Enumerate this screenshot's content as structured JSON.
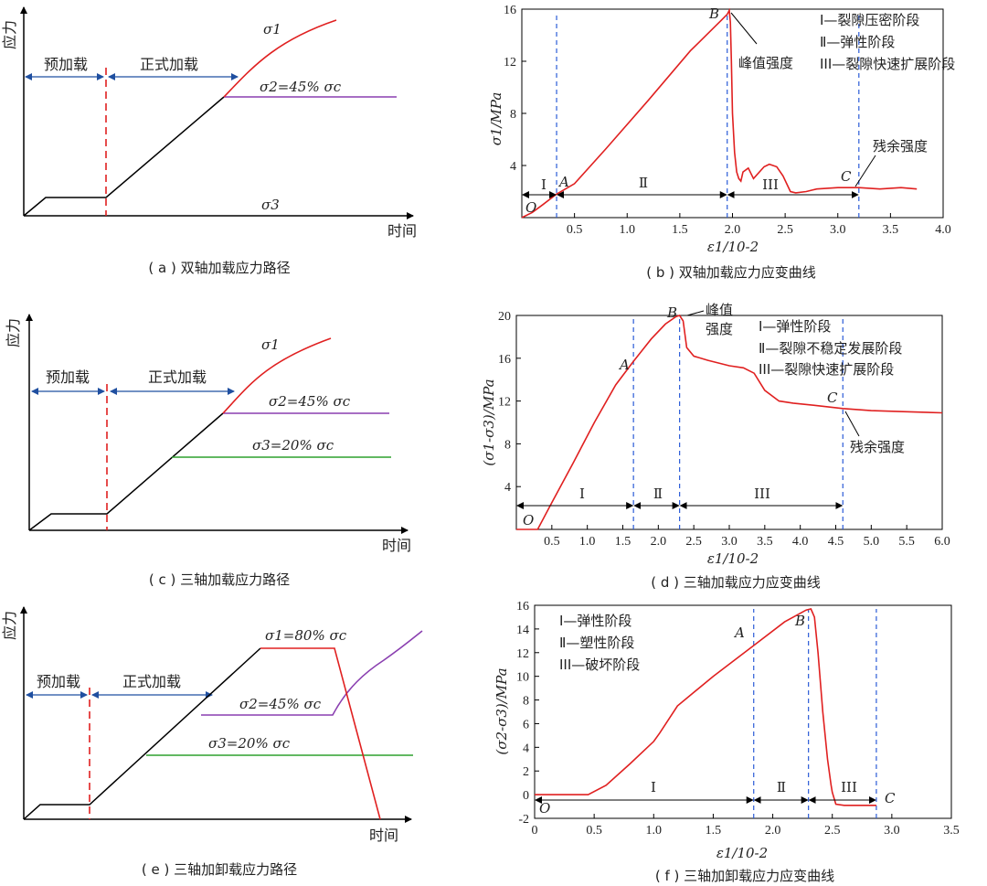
{
  "chart_data": [
    {
      "id": "a",
      "type": "line",
      "caption": "( a ) 双轴加载应力路径",
      "ylabel": "应力",
      "xlabel": "时间",
      "phase_labels": [
        "预加载",
        "正式加载"
      ],
      "legend": {
        "s1": "σ1",
        "s2": "σ2=45% σc",
        "s3": "σ3"
      },
      "series": [
        {
          "name": "σ1",
          "color": "#e02020",
          "points": [
            [
              0.45,
              0.85
            ],
            [
              0.5,
              0.9
            ],
            [
              0.56,
              0.95
            ],
            [
              0.63,
              0.98
            ],
            [
              0.72,
              1.0
            ]
          ]
        },
        {
          "name": "σ2=45% σc",
          "color": "#8a3fb0",
          "points": [
            [
              0.45,
              0.6
            ],
            [
              0.85,
              0.6
            ]
          ]
        },
        {
          "name": "loading",
          "color": "#000000",
          "points": [
            [
              0,
              0
            ],
            [
              0.05,
              0.09
            ],
            [
              0.2,
              0.09
            ],
            [
              0.45,
              0.6
            ]
          ]
        }
      ]
    },
    {
      "id": "b",
      "type": "line",
      "caption": "( b ) 双轴加载应力应变曲线",
      "xlabel": "ε1/10-2",
      "ylabel": "σ1/MPa",
      "xlim": [
        0,
        4.0
      ],
      "ylim": [
        0,
        16
      ],
      "xticks": [
        0.5,
        1.0,
        1.5,
        2.0,
        2.5,
        3.0,
        3.5,
        4.0
      ],
      "yticks": [
        4,
        8,
        12,
        16
      ],
      "xtick_labels": [
        "0.5",
        "1.0",
        "1.5",
        "2.0",
        "2.5",
        "3.0",
        "3.5",
        "4.0"
      ],
      "ytick_labels": [
        "4",
        "8",
        "12",
        "16"
      ],
      "points_labels": [
        "O",
        "A",
        "B",
        "C"
      ],
      "annotations": {
        "peak": "峰值强度",
        "residual": "残余强度"
      },
      "legend": [
        "Ⅰ—裂隙压密阶段",
        "Ⅱ—弹性阶段",
        "III—裂隙快速扩展阶段"
      ],
      "stages": [
        "Ⅰ",
        "Ⅱ",
        "III"
      ],
      "stage_bounds": [
        0,
        0.33,
        1.95,
        3.2
      ],
      "series": [
        {
          "name": "σ1",
          "color": "#e02020",
          "x": [
            0,
            0.1,
            0.2,
            0.33,
            0.5,
            0.8,
            1.2,
            1.6,
            1.9,
            1.95,
            1.97,
            1.98,
            1.99,
            2.0,
            2.02,
            2.04,
            2.06,
            2.08,
            2.1,
            2.15,
            2.2,
            2.3,
            2.35,
            2.42,
            2.48,
            2.55,
            2.6,
            2.7,
            2.8,
            3.0,
            3.2,
            3.4,
            3.6,
            3.75
          ],
          "y": [
            0,
            0.4,
            1.0,
            1.8,
            2.6,
            5.3,
            9.0,
            12.8,
            15.2,
            15.6,
            15.9,
            15.0,
            12.0,
            8.0,
            5.0,
            3.5,
            3.0,
            2.8,
            3.5,
            3.8,
            3.0,
            3.9,
            4.1,
            3.9,
            3.2,
            2.0,
            1.9,
            2.0,
            2.2,
            2.3,
            2.3,
            2.2,
            2.3,
            2.2
          ]
        }
      ]
    },
    {
      "id": "c",
      "type": "line",
      "caption": "( c ) 三轴加载应力路径",
      "ylabel": "应力",
      "xlabel": "时间",
      "phase_labels": [
        "预加载",
        "正式加载"
      ],
      "legend": {
        "s1": "σ1",
        "s2": "σ2=45% σc",
        "s3": "σ3=20% σc"
      },
      "series": [
        {
          "name": "σ1",
          "color": "#e02020",
          "points": [
            [
              0.45,
              0.6
            ],
            [
              0.5,
              0.68
            ],
            [
              0.56,
              0.78
            ],
            [
              0.63,
              0.86
            ],
            [
              0.72,
              0.9
            ]
          ]
        },
        {
          "name": "σ2=45% σc",
          "color": "#8a3fb0",
          "points": [
            [
              0.45,
              0.6
            ],
            [
              0.85,
              0.6
            ]
          ]
        },
        {
          "name": "σ3=20% σc",
          "color": "#2ea02e",
          "points": [
            [
              0.32,
              0.35
            ],
            [
              0.85,
              0.35
            ]
          ]
        },
        {
          "name": "loading",
          "color": "#000000",
          "points": [
            [
              0,
              0
            ],
            [
              0.05,
              0.08
            ],
            [
              0.2,
              0.08
            ],
            [
              0.45,
              0.6
            ]
          ]
        }
      ]
    },
    {
      "id": "d",
      "type": "line",
      "caption": "( d ) 三轴加载应力应变曲线",
      "xlabel": "ε1/10-2",
      "ylabel": "(σ1-σ3)/MPa",
      "xlim": [
        0,
        6.0
      ],
      "ylim": [
        0,
        20
      ],
      "xticks": [
        0.5,
        1.0,
        1.5,
        2.0,
        2.5,
        3.0,
        3.5,
        4.0,
        4.5,
        5.0,
        5.5,
        6.0
      ],
      "yticks": [
        4,
        8,
        12,
        16,
        20
      ],
      "xtick_labels": [
        "0.5",
        "1.0",
        "1.5",
        "2.0",
        "2.5",
        "3.0",
        "3.5",
        "4.0",
        "4.5",
        "5.0",
        "5.5",
        "6.0"
      ],
      "ytick_labels": [
        "4",
        "8",
        "12",
        "16",
        "20"
      ],
      "points_labels": [
        "O",
        "A",
        "B",
        "C"
      ],
      "annotations": {
        "peak": [
          "峰值",
          "强度"
        ],
        "residual": "残余强度"
      },
      "legend": [
        "Ⅰ—弹性阶段",
        "Ⅱ—裂隙不稳定发展阶段",
        "III—裂隙快速扩展阶段"
      ],
      "stages": [
        "Ⅰ",
        "Ⅱ",
        "III"
      ],
      "stage_bounds": [
        0,
        1.65,
        2.3,
        4.6
      ],
      "series": [
        {
          "name": "σ1-σ3",
          "color": "#e02020",
          "x": [
            0,
            0.3,
            0.5,
            0.8,
            1.1,
            1.4,
            1.65,
            1.9,
            2.1,
            2.25,
            2.3,
            2.35,
            2.4,
            2.5,
            2.7,
            3.0,
            3.2,
            3.35,
            3.5,
            3.7,
            3.9,
            4.2,
            4.6,
            5.0,
            5.5,
            6.0
          ],
          "y": [
            0,
            0,
            2.5,
            6.2,
            10.0,
            13.5,
            15.7,
            17.8,
            19.2,
            19.9,
            20.0,
            19.5,
            17.0,
            16.2,
            15.8,
            15.3,
            15.1,
            14.6,
            13.0,
            12.0,
            11.8,
            11.6,
            11.3,
            11.1,
            11.0,
            10.9
          ]
        }
      ]
    },
    {
      "id": "e",
      "type": "line",
      "caption": "( e ) 三轴加卸载应力路径",
      "ylabel": "应力",
      "xlabel": "时间",
      "phase_labels": [
        "预加载",
        "正式加载"
      ],
      "legend": {
        "s1": "σ1=80% σc",
        "s2": "σ2=45% σc",
        "s3": "σ3=20% σc"
      },
      "series": [
        {
          "name": "σ1=80% σc",
          "color": "#e02020",
          "points": [
            [
              0.6,
              0.86
            ],
            [
              0.78,
              0.86
            ],
            [
              0.9,
              0.0
            ]
          ]
        },
        {
          "name": "σ2=45% σc",
          "color": "#8a3fb0",
          "points": [
            [
              0.45,
              0.52
            ],
            [
              0.79,
              0.52
            ],
            [
              0.84,
              0.65
            ],
            [
              0.93,
              0.8
            ],
            [
              1.0,
              0.9
            ]
          ]
        },
        {
          "name": "σ3=20% σc",
          "color": "#2ea02e",
          "points": [
            [
              0.32,
              0.32
            ],
            [
              0.99,
              0.32
            ]
          ]
        },
        {
          "name": "loading",
          "color": "#000000",
          "points": [
            [
              0,
              0
            ],
            [
              0.05,
              0.06
            ],
            [
              0.2,
              0.06
            ],
            [
              0.6,
              0.86
            ]
          ]
        }
      ]
    },
    {
      "id": "f",
      "type": "line",
      "caption": "( f ) 三轴加卸载应力应变曲线",
      "xlabel": "ε1/10-2",
      "ylabel": "(σ2-σ3)/MPa",
      "xlim": [
        0,
        3.5
      ],
      "ylim": [
        -2,
        16
      ],
      "xticks": [
        0,
        0.5,
        1.0,
        1.5,
        2.0,
        2.5,
        3.0,
        3.5
      ],
      "yticks": [
        -2,
        0,
        2,
        4,
        6,
        8,
        10,
        12,
        14,
        16
      ],
      "xtick_labels": [
        "0",
        "0.5",
        "1.0",
        "1.5",
        "2.0",
        "2.5",
        "3.0",
        "3.5"
      ],
      "ytick_labels": [
        "-2",
        "0",
        "2",
        "4",
        "6",
        "8",
        "10",
        "12",
        "14",
        "16"
      ],
      "points_labels": [
        "O",
        "A",
        "B",
        "C"
      ],
      "legend": [
        "Ⅰ—弹性阶段",
        "Ⅱ—塑性阶段",
        "III—破坏阶段"
      ],
      "stages": [
        "Ⅰ",
        "Ⅱ",
        "III"
      ],
      "stage_bounds": [
        0,
        1.84,
        2.3,
        2.87
      ],
      "series": [
        {
          "name": "σ2-σ3",
          "color": "#e02020",
          "x": [
            0,
            0.45,
            0.6,
            0.8,
            1.0,
            1.05,
            1.2,
            1.5,
            1.84,
            2.1,
            2.28,
            2.32,
            2.35,
            2.38,
            2.42,
            2.46,
            2.49,
            2.5,
            2.53,
            2.6,
            2.87
          ],
          "y": [
            0,
            0,
            0.8,
            2.6,
            4.5,
            5.2,
            7.5,
            10.0,
            12.6,
            14.6,
            15.6,
            15.7,
            15.0,
            12.0,
            7.0,
            3.0,
            0.8,
            0.2,
            -0.8,
            -0.9,
            -0.9
          ]
        }
      ]
    }
  ]
}
